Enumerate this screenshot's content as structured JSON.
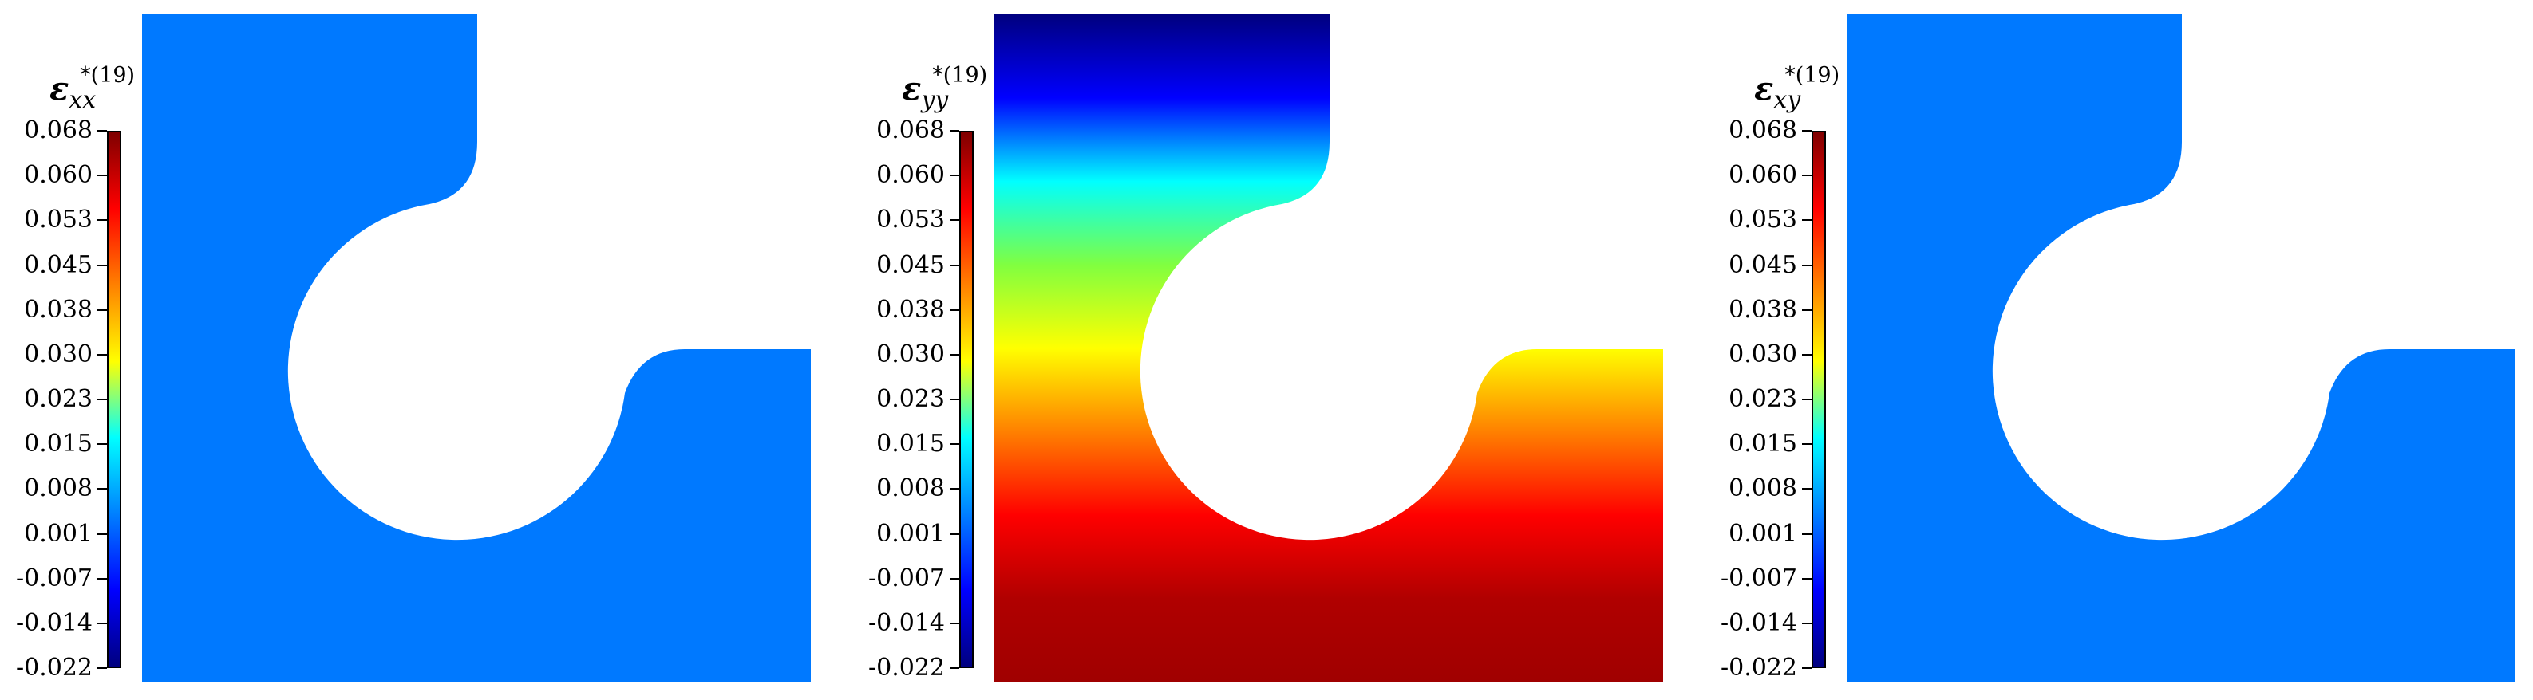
{
  "ticks": [
    "0.068",
    "0.060",
    "0.053",
    "0.045",
    "0.038",
    "0.030",
    "0.023",
    "0.015",
    "0.008",
    "0.001",
    "-0.007",
    "-0.014",
    "-0.022"
  ],
  "colormap": [
    "#7f0000",
    "#ff0000",
    "#ff8000",
    "#ffff00",
    "#00ffff",
    "#0080ff",
    "#0000ff",
    "#00007f"
  ],
  "panels": [
    {
      "symbol": "ε",
      "sub": "xx",
      "sup": "*(19)",
      "fill": "uniform",
      "fill_color": "#0079ff"
    },
    {
      "symbol": "ε",
      "sub": "yy",
      "sup": "*(19)",
      "fill": "vertical-gradient",
      "gradient": [
        "#00007f",
        "#0000ff",
        "#00ffff",
        "#80ff40",
        "#ffff00",
        "#ff8000",
        "#ff0000",
        "#b00000",
        "#a00000"
      ]
    },
    {
      "symbol": "ε",
      "sub": "xy",
      "sup": "*(19)",
      "fill": "uniform",
      "fill_color": "#0079ff"
    }
  ]
}
